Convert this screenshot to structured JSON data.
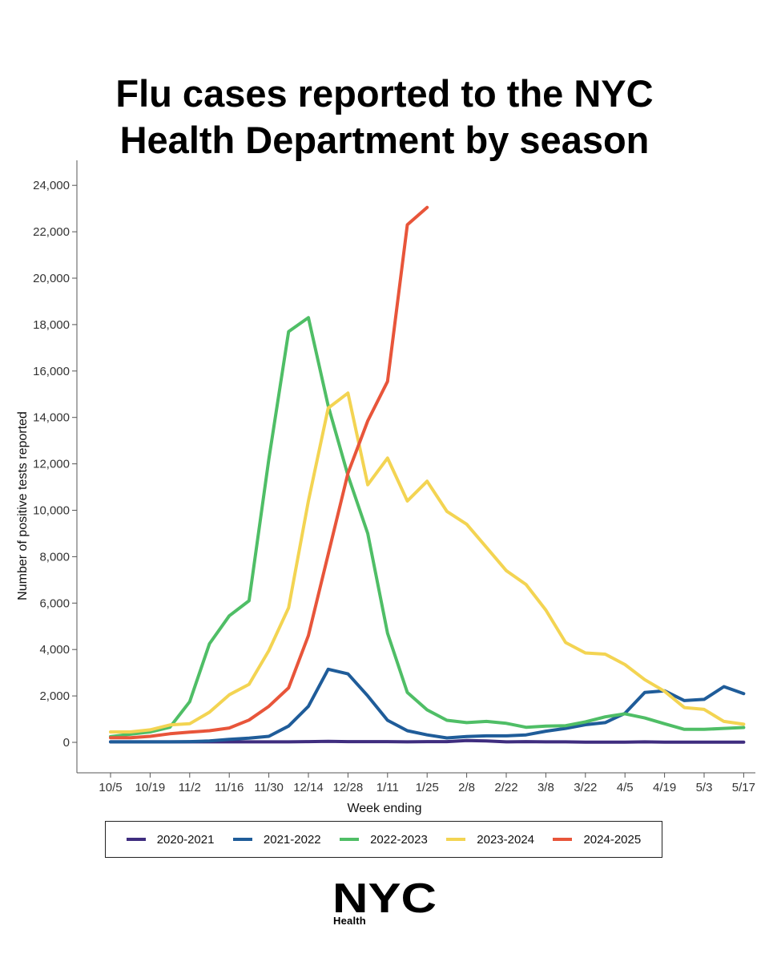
{
  "title": {
    "line1": "Flu cases reported to the NYC",
    "line2": "Health Department by season"
  },
  "chart_data": {
    "type": "line",
    "title": "Flu cases reported to the NYC Health Department by season",
    "xlabel": "Week ending",
    "ylabel": "Number of positive tests reported",
    "ylim": [
      -1500,
      24000
    ],
    "yticks": [
      0,
      2000,
      4000,
      6000,
      8000,
      10000,
      12000,
      14000,
      16000,
      18000,
      20000,
      22000,
      24000
    ],
    "ytick_labels": [
      "0",
      "2,000",
      "4,000",
      "6,000",
      "8,000",
      "10,000",
      "12,000",
      "14,000",
      "16,000",
      "18,000",
      "20,000",
      "22,000",
      "24,000"
    ],
    "xticks": [
      "10/5",
      "10/19",
      "11/2",
      "11/16",
      "11/30",
      "12/14",
      "12/28",
      "1/11",
      "1/25",
      "2/8",
      "2/22",
      "3/8",
      "3/22",
      "4/5",
      "4/19",
      "5/3",
      "5/17"
    ],
    "num_weeks": 33,
    "grid": false,
    "legend_position": "bottom",
    "series": [
      {
        "name": "2020-2021",
        "color": "#3f2d7f",
        "values": [
          20,
          20,
          20,
          20,
          20,
          20,
          20,
          20,
          20,
          20,
          30,
          40,
          30,
          30,
          30,
          20,
          30,
          30,
          80,
          60,
          20,
          30,
          20,
          20,
          10,
          10,
          10,
          20,
          10,
          10,
          10,
          10,
          10
        ]
      },
      {
        "name": "2021-2022",
        "color": "#1f5c99",
        "values": [
          20,
          20,
          20,
          20,
          30,
          60,
          130,
          180,
          260,
          700,
          1550,
          3150,
          2950,
          2000,
          950,
          500,
          320,
          190,
          250,
          280,
          280,
          320,
          480,
          600,
          760,
          850,
          1250,
          2150,
          2220,
          1800,
          1850,
          2400,
          2100
        ]
      },
      {
        "name": "2022-2023",
        "color": "#4fbe66",
        "values": [
          250,
          350,
          450,
          650,
          1750,
          4250,
          5450,
          6100,
          12200,
          17700,
          18300,
          14500,
          11500,
          9000,
          4700,
          2150,
          1400,
          950,
          850,
          900,
          820,
          650,
          700,
          720,
          880,
          1100,
          1230,
          1050,
          800,
          560,
          560,
          600,
          640
        ]
      },
      {
        "name": "2023-2024",
        "color": "#f3d452",
        "values": [
          450,
          450,
          540,
          750,
          800,
          1300,
          2050,
          2500,
          3950,
          5800,
          10400,
          14400,
          15050,
          11100,
          12250,
          10400,
          11250,
          9950,
          9400,
          8400,
          7400,
          6800,
          5700,
          4300,
          3850,
          3800,
          3350,
          2700,
          2200,
          1500,
          1420,
          900,
          780
        ]
      },
      {
        "name": "2024-2025",
        "color": "#e8553a",
        "values": [
          200,
          200,
          260,
          370,
          440,
          500,
          620,
          960,
          1550,
          2350,
          4600,
          8100,
          11600,
          13850,
          15550,
          22300,
          23050
        ]
      }
    ]
  },
  "logo": {
    "brand": "NYC",
    "subtitle": "Health"
  }
}
